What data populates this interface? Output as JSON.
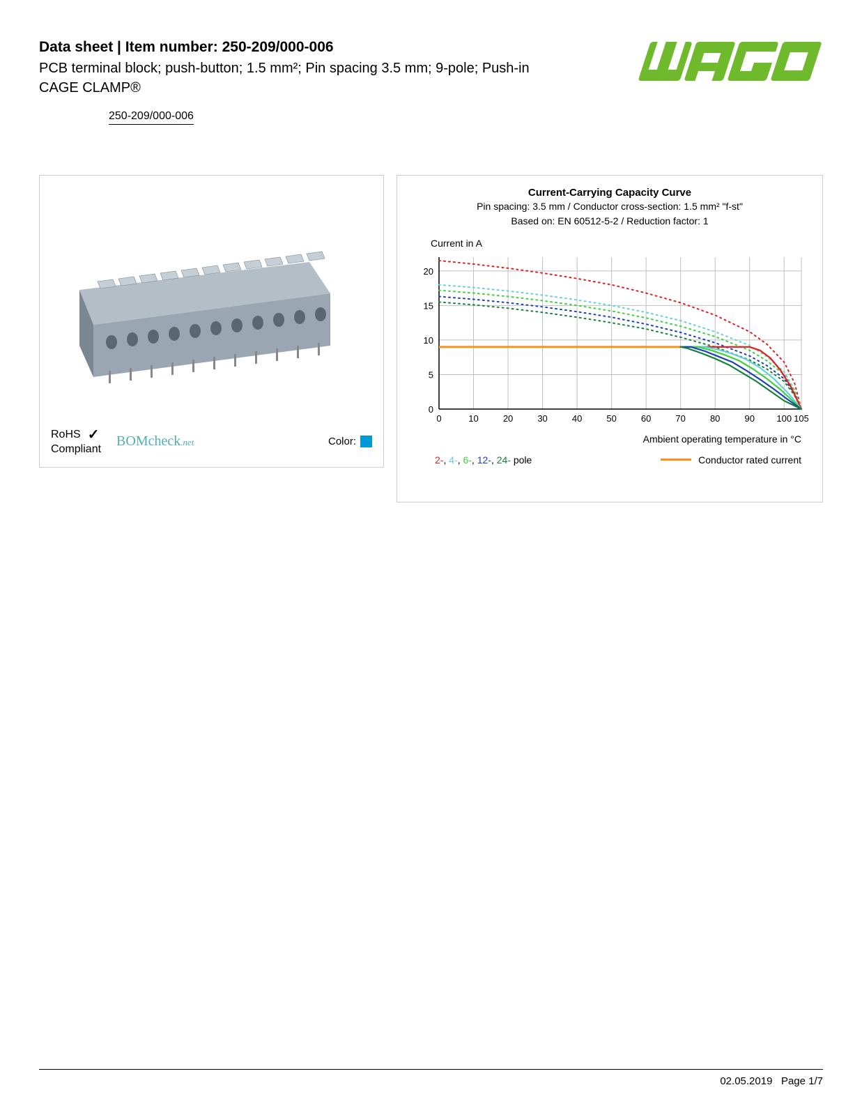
{
  "header": {
    "title": "Data sheet  |  Item number: 250-209/000-006",
    "subtitle": "PCB terminal block; push-button; 1.5 mm²; Pin spacing 3.5 mm; 9-pole; Push-in CAGE CLAMP®",
    "item_link": "250-209/000-006"
  },
  "logo": {
    "brand": "WAGO",
    "color": "#6fba2c"
  },
  "product_panel": {
    "rohs_line1": "RoHS",
    "rohs_line2": "Compliant",
    "bomcheck": "BOMcheck",
    "bomcheck_suffix": ".net",
    "bomcheck_color": "#4faeb3",
    "color_label": "Color:",
    "swatch_color": "#0099d8",
    "product_body_color": "#9aa6b1",
    "product_shadow": "#7a8691"
  },
  "chart": {
    "title": "Current-Carrying Capacity Curve",
    "sub1": "Pin spacing: 3.5 mm / Conductor cross-section: 1.5 mm² \"f-st\"",
    "sub2": "Based on: EN 60512-5-2 / Reduction factor: 1",
    "ylabel": "Current in A",
    "xlabel": "Ambient operating temperature in °C",
    "xlim": [
      0,
      105
    ],
    "ylim": [
      0,
      22
    ],
    "xticks": [
      0,
      10,
      20,
      30,
      40,
      50,
      60,
      70,
      80,
      90,
      100,
      105
    ],
    "yticks": [
      0,
      5,
      10,
      15,
      20
    ],
    "grid_color": "#bfbfbf",
    "axis_color": "#000000",
    "line_width_solid": 2.2,
    "line_width_dotted": 2,
    "series": [
      {
        "name": "2-pole-dotted",
        "color": "#e21d1d",
        "style": "dotted",
        "data": [
          [
            0,
            21.5
          ],
          [
            10,
            21
          ],
          [
            20,
            20.4
          ],
          [
            30,
            19.7
          ],
          [
            40,
            18.9
          ],
          [
            50,
            18
          ],
          [
            60,
            16.8
          ],
          [
            70,
            15.4
          ],
          [
            80,
            13.6
          ],
          [
            90,
            11.2
          ],
          [
            95,
            9.4
          ],
          [
            100,
            6.8
          ],
          [
            103,
            3.8
          ],
          [
            105,
            0
          ]
        ]
      },
      {
        "name": "4-pole-dotted",
        "color": "#63d2d6",
        "style": "dotted",
        "data": [
          [
            0,
            18
          ],
          [
            10,
            17.6
          ],
          [
            20,
            17.1
          ],
          [
            30,
            16.5
          ],
          [
            40,
            15.8
          ],
          [
            50,
            15
          ],
          [
            60,
            14
          ],
          [
            70,
            12.8
          ],
          [
            80,
            11.2
          ],
          [
            90,
            9.2
          ],
          [
            95,
            7.6
          ],
          [
            100,
            5.4
          ],
          [
            103,
            2.8
          ],
          [
            105,
            0
          ]
        ]
      },
      {
        "name": "6-pole-dotted",
        "color": "#3dd13d",
        "style": "dotted",
        "data": [
          [
            0,
            17.2
          ],
          [
            10,
            16.8
          ],
          [
            20,
            16.3
          ],
          [
            30,
            15.7
          ],
          [
            40,
            15
          ],
          [
            50,
            14.2
          ],
          [
            60,
            13.2
          ],
          [
            70,
            12
          ],
          [
            80,
            10.5
          ],
          [
            90,
            8.5
          ],
          [
            95,
            7
          ],
          [
            100,
            5
          ],
          [
            103,
            2.6
          ],
          [
            105,
            0
          ]
        ]
      },
      {
        "name": "12-pole-dotted",
        "color": "#1a3fbf",
        "style": "dotted",
        "data": [
          [
            0,
            16.3
          ],
          [
            10,
            15.9
          ],
          [
            20,
            15.4
          ],
          [
            30,
            14.8
          ],
          [
            40,
            14.1
          ],
          [
            50,
            13.3
          ],
          [
            60,
            12.3
          ],
          [
            70,
            11.1
          ],
          [
            80,
            9.6
          ],
          [
            90,
            7.7
          ],
          [
            95,
            6.3
          ],
          [
            100,
            4.4
          ],
          [
            103,
            2.2
          ],
          [
            105,
            0
          ]
        ]
      },
      {
        "name": "24-pole-dotted",
        "color": "#14803c",
        "style": "dotted",
        "data": [
          [
            0,
            15.5
          ],
          [
            10,
            15.1
          ],
          [
            20,
            14.6
          ],
          [
            30,
            14
          ],
          [
            40,
            13.3
          ],
          [
            50,
            12.5
          ],
          [
            60,
            11.6
          ],
          [
            70,
            10.4
          ],
          [
            80,
            9
          ],
          [
            90,
            7.1
          ],
          [
            95,
            5.8
          ],
          [
            100,
            4
          ],
          [
            103,
            2
          ],
          [
            105,
            0
          ]
        ]
      },
      {
        "name": "2-pole-solid",
        "color": "#e21d1d",
        "style": "solid",
        "data": [
          [
            70,
            9
          ],
          [
            80,
            9
          ],
          [
            85,
            9
          ],
          [
            90,
            9
          ],
          [
            93,
            8.5
          ],
          [
            96,
            7.4
          ],
          [
            99,
            5.6
          ],
          [
            102,
            3.2
          ],
          [
            105,
            0
          ]
        ]
      },
      {
        "name": "4-pole-solid",
        "color": "#63d2d6",
        "style": "solid",
        "data": [
          [
            70,
            9
          ],
          [
            77,
            9
          ],
          [
            81,
            8.6
          ],
          [
            85,
            8
          ],
          [
            89,
            7.2
          ],
          [
            93,
            6
          ],
          [
            97,
            4.4
          ],
          [
            101,
            2.4
          ],
          [
            105,
            0
          ]
        ]
      },
      {
        "name": "6-pole-solid",
        "color": "#3dd13d",
        "style": "solid",
        "data": [
          [
            70,
            9
          ],
          [
            75,
            9
          ],
          [
            79,
            8.5
          ],
          [
            83,
            7.8
          ],
          [
            87,
            7
          ],
          [
            91,
            5.8
          ],
          [
            95,
            4.4
          ],
          [
            99,
            2.8
          ],
          [
            102,
            1.4
          ],
          [
            105,
            0
          ]
        ]
      },
      {
        "name": "12-pole-solid",
        "color": "#1a3fbf",
        "style": "solid",
        "data": [
          [
            70,
            9
          ],
          [
            73,
            9
          ],
          [
            77,
            8.4
          ],
          [
            81,
            7.6
          ],
          [
            85,
            6.8
          ],
          [
            89,
            5.6
          ],
          [
            93,
            4.3
          ],
          [
            97,
            2.9
          ],
          [
            101,
            1.4
          ],
          [
            105,
            0
          ]
        ]
      },
      {
        "name": "24-pole-solid",
        "color": "#14803c",
        "style": "solid",
        "data": [
          [
            70,
            9
          ],
          [
            72,
            8.8
          ],
          [
            76,
            8.1
          ],
          [
            80,
            7.3
          ],
          [
            84,
            6.4
          ],
          [
            88,
            5.2
          ],
          [
            92,
            4
          ],
          [
            96,
            2.6
          ],
          [
            100,
            1.2
          ],
          [
            105,
            0
          ]
        ]
      }
    ],
    "conductor_line": {
      "color": "#f7941d",
      "y": 9,
      "x0": 0,
      "x1": 70,
      "width": 3
    },
    "legend": {
      "poles": [
        {
          "label": "2-",
          "color": "#e21d1d"
        },
        {
          "label": "4-",
          "color": "#63d2d6"
        },
        {
          "label": "6-",
          "color": "#3dd13d"
        },
        {
          "label": "12-",
          "color": "#1a3fbf"
        },
        {
          "label": "24-",
          "color": "#14803c"
        }
      ],
      "poles_suffix": " pole",
      "conductor_label": "Conductor rated current"
    }
  },
  "footer": {
    "date": "02.05.2019",
    "page": "Page 1/7"
  }
}
